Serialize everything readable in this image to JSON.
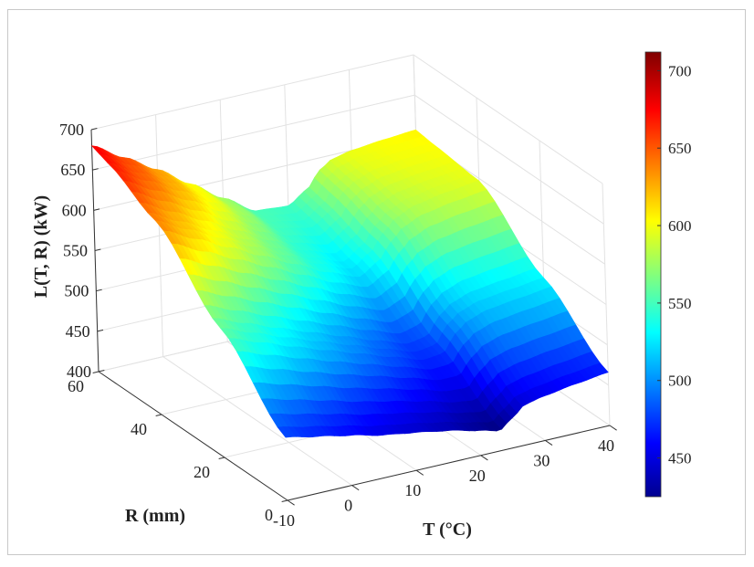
{
  "chart_data": {
    "type": "surface",
    "zlabel": "L(T, R) (kW)",
    "xlabel": "T (°C)",
    "ylabel": "R (mm)",
    "x_ticks": [
      "-10",
      "0",
      "10",
      "20",
      "30",
      "40"
    ],
    "y_ticks": [
      "0",
      "20",
      "40",
      "60"
    ],
    "z_ticks": [
      "400",
      "450",
      "500",
      "550",
      "600",
      "650",
      "700"
    ],
    "xlim": [
      -10,
      40
    ],
    "ylim": [
      0,
      60
    ],
    "zlim": [
      400,
      700
    ],
    "colormap": "jet",
    "colorbar": {
      "range": [
        425,
        712
      ],
      "ticks": [
        "450",
        "500",
        "550",
        "600",
        "650",
        "700"
      ],
      "colors": [
        "#00008f",
        "#0000ff",
        "#00ffff",
        "#ffff00",
        "#ff0000",
        "#800000"
      ]
    },
    "grid": true,
    "surface": {
      "T": [
        -10,
        -5,
        0,
        5,
        10,
        15,
        20,
        23,
        25,
        27,
        30,
        35,
        40
      ],
      "R": [
        0,
        20,
        40,
        55,
        60
      ],
      "L": [
        [
          478,
          470,
          462,
          453,
          447,
          440,
          431,
          425,
          437,
          450,
          455,
          461,
          466
        ],
        [
          560,
          545,
          530,
          516,
          502,
          488,
          475,
          478,
          500,
          512,
          520,
          525,
          530
        ],
        [
          640,
          620,
          600,
          580,
          560,
          540,
          525,
          540,
          560,
          575,
          585,
          592,
          597
        ],
        [
          672,
          650,
          628,
          604,
          578,
          552,
          545,
          560,
          580,
          590,
          598,
          602,
          604
        ],
        [
          680,
          656,
          632,
          605,
          578,
          553,
          550,
          565,
          585,
          595,
          600,
          604,
          607
        ]
      ]
    }
  }
}
